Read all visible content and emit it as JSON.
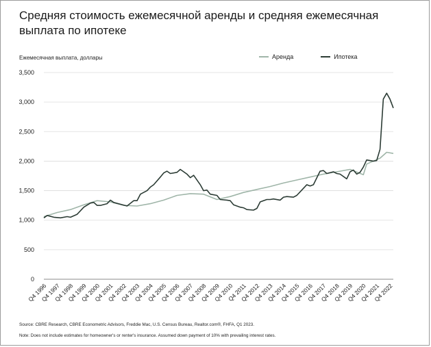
{
  "title": "Средняя стоимость ежемесячной аренды и средняя ежемесячная выплата по ипотеке",
  "footnotes": {
    "source": "Source: CBRE Research, CBRE Econometric Advisors, Freddie Mac, U.S. Census Bureau, Realtor.com®, FHFA, Q1 2023.",
    "note": "Note: Does not include estimates for homeowner's or renter's insurance. Assumed down payment of 10% with prevailing interest rates."
  },
  "chart_data": {
    "type": "line",
    "ylabel": "Ежемесячная выплата, доллары",
    "ylim": [
      0,
      3500
    ],
    "yticks": [
      0,
      500,
      1000,
      1500,
      2000,
      2500,
      3000,
      3500
    ],
    "ytick_labels": [
      "0",
      "500",
      "1,000",
      "1,500",
      "2,000",
      "2,500",
      "3,000",
      "3,500"
    ],
    "xlim": [
      1996.75,
      2023.0
    ],
    "xticks": [
      1996.75,
      1997.75,
      1998.75,
      1999.75,
      2000.75,
      2001.75,
      2002.75,
      2003.75,
      2004.75,
      2005.75,
      2006.75,
      2007.75,
      2008.75,
      2009.75,
      2010.75,
      2011.75,
      2012.75,
      2013.75,
      2014.75,
      2015.75,
      2016.75,
      2017.75,
      2018.75,
      2019.75,
      2020.75,
      2021.75,
      2022.75
    ],
    "xtick_labels": [
      "Q4 1996",
      "Q4 1997",
      "Q4 1998",
      "Q4 1999",
      "Q4 2000",
      "Q4 2001",
      "Q4 2002",
      "Q4 2003",
      "Q4 2004",
      "Q4 2005",
      "Q4 2006",
      "Q4 2007",
      "Q4 2008",
      "Q4 2009",
      "Q4 2010",
      "Q4 2011",
      "Q4 2012",
      "Q4 2013",
      "Q4 2014",
      "Q4 2015",
      "Q4 2016",
      "Q4 2017",
      "Q4 2018",
      "Q4 2019",
      "Q4 2020",
      "Q4 2021",
      "Q4 2022"
    ],
    "legend_position": "top-right",
    "series": [
      {
        "name": "Аренда",
        "color": "#9fb5a8",
        "points": [
          [
            1996.75,
            1060
          ],
          [
            1997.75,
            1130
          ],
          [
            1998.75,
            1180
          ],
          [
            1999.75,
            1260
          ],
          [
            2000.75,
            1330
          ],
          [
            2001.75,
            1310
          ],
          [
            2002.75,
            1250
          ],
          [
            2003.75,
            1240
          ],
          [
            2004.75,
            1280
          ],
          [
            2005.75,
            1340
          ],
          [
            2006.75,
            1420
          ],
          [
            2007.75,
            1450
          ],
          [
            2008.75,
            1440
          ],
          [
            2009.75,
            1350
          ],
          [
            2010.75,
            1400
          ],
          [
            2011.75,
            1470
          ],
          [
            2012.75,
            1520
          ],
          [
            2013.75,
            1570
          ],
          [
            2014.75,
            1630
          ],
          [
            2015.75,
            1680
          ],
          [
            2016.75,
            1730
          ],
          [
            2017.75,
            1780
          ],
          [
            2018.75,
            1820
          ],
          [
            2019.75,
            1860
          ],
          [
            2020.75,
            1770
          ],
          [
            2021.0,
            1950
          ],
          [
            2022.0,
            2050
          ],
          [
            2022.5,
            2150
          ],
          [
            2023.0,
            2130
          ]
        ]
      },
      {
        "name": "Ипотека",
        "color": "#2b3b34",
        "points": [
          [
            1996.75,
            1040
          ],
          [
            1997.0,
            1080
          ],
          [
            1997.5,
            1050
          ],
          [
            1998.0,
            1040
          ],
          [
            1998.5,
            1060
          ],
          [
            1998.75,
            1050
          ],
          [
            1999.25,
            1100
          ],
          [
            1999.75,
            1220
          ],
          [
            2000.25,
            1290
          ],
          [
            2000.5,
            1300
          ],
          [
            2000.75,
            1250
          ],
          [
            2001.0,
            1250
          ],
          [
            2001.5,
            1280
          ],
          [
            2001.75,
            1340
          ],
          [
            2002.0,
            1300
          ],
          [
            2002.5,
            1270
          ],
          [
            2003.0,
            1240
          ],
          [
            2003.5,
            1330
          ],
          [
            2003.75,
            1330
          ],
          [
            2004.0,
            1440
          ],
          [
            2004.5,
            1500
          ],
          [
            2004.75,
            1560
          ],
          [
            2005.0,
            1600
          ],
          [
            2005.5,
            1730
          ],
          [
            2005.75,
            1800
          ],
          [
            2006.0,
            1830
          ],
          [
            2006.25,
            1790
          ],
          [
            2006.75,
            1810
          ],
          [
            2007.0,
            1860
          ],
          [
            2007.5,
            1780
          ],
          [
            2007.75,
            1720
          ],
          [
            2008.0,
            1760
          ],
          [
            2008.5,
            1600
          ],
          [
            2008.75,
            1500
          ],
          [
            2009.0,
            1510
          ],
          [
            2009.25,
            1440
          ],
          [
            2009.75,
            1420
          ],
          [
            2010.0,
            1350
          ],
          [
            2010.5,
            1340
          ],
          [
            2010.75,
            1330
          ],
          [
            2011.0,
            1260
          ],
          [
            2011.5,
            1220
          ],
          [
            2011.75,
            1210
          ],
          [
            2012.0,
            1180
          ],
          [
            2012.5,
            1170
          ],
          [
            2012.75,
            1200
          ],
          [
            2013.0,
            1310
          ],
          [
            2013.5,
            1350
          ],
          [
            2013.75,
            1350
          ],
          [
            2014.0,
            1360
          ],
          [
            2014.5,
            1340
          ],
          [
            2014.75,
            1390
          ],
          [
            2015.0,
            1400
          ],
          [
            2015.5,
            1390
          ],
          [
            2015.75,
            1420
          ],
          [
            2016.0,
            1480
          ],
          [
            2016.5,
            1600
          ],
          [
            2016.75,
            1580
          ],
          [
            2017.0,
            1600
          ],
          [
            2017.5,
            1830
          ],
          [
            2017.75,
            1840
          ],
          [
            2018.0,
            1790
          ],
          [
            2018.5,
            1820
          ],
          [
            2018.75,
            1790
          ],
          [
            2019.0,
            1780
          ],
          [
            2019.5,
            1700
          ],
          [
            2019.75,
            1820
          ],
          [
            2020.0,
            1850
          ],
          [
            2020.25,
            1780
          ],
          [
            2020.5,
            1810
          ],
          [
            2020.75,
            1900
          ],
          [
            2021.0,
            2020
          ],
          [
            2021.5,
            2000
          ],
          [
            2021.75,
            2010
          ],
          [
            2022.0,
            2200
          ],
          [
            2022.25,
            3050
          ],
          [
            2022.5,
            3150
          ],
          [
            2022.75,
            3050
          ],
          [
            2023.0,
            2900
          ]
        ]
      }
    ]
  }
}
